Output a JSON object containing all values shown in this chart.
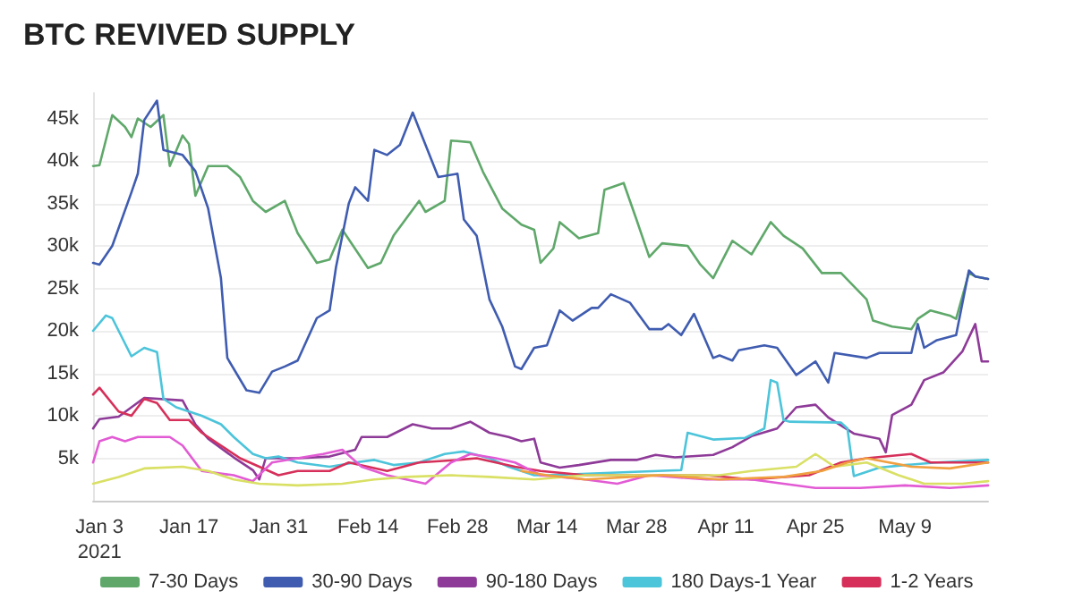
{
  "chart_data": {
    "type": "line",
    "title": "BTC REVIVED SUPPLY",
    "xlim": [
      "2021-01-02",
      "2021-05-22"
    ],
    "xticks": [
      {
        "value": "2021-01-03",
        "label": "Jan 3\n2021"
      },
      {
        "value": "2021-01-17",
        "label": "Jan 17"
      },
      {
        "value": "2021-01-31",
        "label": "Jan 31"
      },
      {
        "value": "2021-02-14",
        "label": "Feb 14"
      },
      {
        "value": "2021-02-28",
        "label": "Feb 28"
      },
      {
        "value": "2021-03-14",
        "label": "Mar 14"
      },
      {
        "value": "2021-03-28",
        "label": "Mar 28"
      },
      {
        "value": "2021-04-11",
        "label": "Apr 11"
      },
      {
        "value": "2021-04-25",
        "label": "Apr 25"
      },
      {
        "value": "2021-05-09",
        "label": "May 9"
      }
    ],
    "ylim": [
      0,
      48000
    ],
    "yticks": [
      {
        "value": 5000,
        "label": "5k"
      },
      {
        "value": 10000,
        "label": "10k"
      },
      {
        "value": 15000,
        "label": "15k"
      },
      {
        "value": 20000,
        "label": "20k"
      },
      {
        "value": 25000,
        "label": "25k"
      },
      {
        "value": 30000,
        "label": "30k"
      },
      {
        "value": 35000,
        "label": "35k"
      },
      {
        "value": 40000,
        "label": "40k"
      },
      {
        "value": 45000,
        "label": "45k"
      }
    ],
    "grid": "y",
    "legend": "bottom",
    "marker": "none",
    "series": [
      {
        "name": "7-30 Days",
        "color": "#5fa86a",
        "x": [
          "2021-01-02",
          "2021-01-03",
          "2021-01-05",
          "2021-01-07",
          "2021-01-08",
          "2021-01-09",
          "2021-01-11",
          "2021-01-13",
          "2021-01-14",
          "2021-01-16",
          "2021-01-17",
          "2021-01-18",
          "2021-01-20",
          "2021-01-23",
          "2021-01-25",
          "2021-01-27",
          "2021-01-29",
          "2021-02-01",
          "2021-02-03",
          "2021-02-06",
          "2021-02-08",
          "2021-02-10",
          "2021-02-14",
          "2021-02-16",
          "2021-02-18",
          "2021-02-22",
          "2021-02-23",
          "2021-02-26",
          "2021-02-27",
          "2021-03-02",
          "2021-03-04",
          "2021-03-07",
          "2021-03-10",
          "2021-03-12",
          "2021-03-13",
          "2021-03-15",
          "2021-03-16",
          "2021-03-19",
          "2021-03-22",
          "2021-03-23",
          "2021-03-26",
          "2021-03-28",
          "2021-03-30",
          "2021-04-01",
          "2021-04-05",
          "2021-04-07",
          "2021-04-09",
          "2021-04-12",
          "2021-04-15",
          "2021-04-18",
          "2021-04-20",
          "2021-04-23",
          "2021-04-26",
          "2021-04-29",
          "2021-05-03",
          "2021-05-04",
          "2021-05-07",
          "2021-05-10",
          "2021-05-11",
          "2021-05-13",
          "2021-05-16",
          "2021-05-17",
          "2021-05-19",
          "2021-05-20",
          "2021-05-22"
        ],
        "values": [
          39400,
          39500,
          45400,
          44000,
          42800,
          45000,
          44000,
          45400,
          39400,
          43000,
          42000,
          35900,
          39400,
          39400,
          38100,
          35300,
          34000,
          35300,
          31500,
          28000,
          28400,
          31900,
          27400,
          28000,
          31200,
          35300,
          34000,
          35300,
          42400,
          42200,
          38700,
          34400,
          32500,
          31900,
          28000,
          29700,
          32800,
          30900,
          31500,
          36600,
          37400,
          33100,
          28700,
          30300,
          30000,
          27800,
          26200,
          30600,
          29000,
          32800,
          31200,
          29700,
          26800,
          26800,
          23700,
          21200,
          20500,
          20200,
          21400,
          22400,
          21800,
          21400,
          26800,
          26400,
          26100
        ]
      },
      {
        "name": "30-90 Days",
        "color": "#3f5cb0",
        "x": [
          "2021-01-02",
          "2021-01-03",
          "2021-01-05",
          "2021-01-08",
          "2021-01-09",
          "2021-01-10",
          "2021-01-12",
          "2021-01-13",
          "2021-01-16",
          "2021-01-18",
          "2021-01-20",
          "2021-01-22",
          "2021-01-23",
          "2021-01-26",
          "2021-01-28",
          "2021-01-30",
          "2021-02-01",
          "2021-02-03",
          "2021-02-06",
          "2021-02-08",
          "2021-02-09",
          "2021-02-11",
          "2021-02-12",
          "2021-02-14",
          "2021-02-15",
          "2021-02-17",
          "2021-02-19",
          "2021-02-21",
          "2021-02-22",
          "2021-02-25",
          "2021-02-28",
          "2021-03-01",
          "2021-03-03",
          "2021-03-05",
          "2021-03-07",
          "2021-03-09",
          "2021-03-10",
          "2021-03-12",
          "2021-03-14",
          "2021-03-16",
          "2021-03-18",
          "2021-03-21",
          "2021-03-22",
          "2021-03-24",
          "2021-03-27",
          "2021-03-30",
          "2021-04-01",
          "2021-04-02",
          "2021-04-04",
          "2021-04-06",
          "2021-04-09",
          "2021-04-10",
          "2021-04-12",
          "2021-04-13",
          "2021-04-17",
          "2021-04-19",
          "2021-04-22",
          "2021-04-25",
          "2021-04-27",
          "2021-04-28",
          "2021-05-03",
          "2021-05-05",
          "2021-05-10",
          "2021-05-11",
          "2021-05-12",
          "2021-05-14",
          "2021-05-17",
          "2021-05-19",
          "2021-05-20",
          "2021-05-22"
        ],
        "values": [
          28000,
          27800,
          30000,
          36300,
          38500,
          44800,
          47100,
          41300,
          40700,
          38800,
          34400,
          26200,
          16800,
          13000,
          12700,
          15200,
          15800,
          16500,
          21500,
          22400,
          27500,
          35000,
          36900,
          35300,
          41300,
          40700,
          41900,
          45700,
          43800,
          38100,
          38500,
          33100,
          31200,
          23700,
          20500,
          15800,
          15500,
          18000,
          18300,
          22400,
          21200,
          22700,
          22700,
          24300,
          23300,
          20200,
          20200,
          20800,
          19500,
          22000,
          16800,
          17100,
          16500,
          17700,
          18300,
          18000,
          14800,
          16400,
          13900,
          17400,
          16800,
          17400,
          17400,
          20800,
          18000,
          18900,
          19500,
          27100,
          26400,
          26100
        ]
      },
      {
        "name": "90-180 Days",
        "color": "#8e3a98",
        "x": [
          "2021-01-02",
          "2021-01-03",
          "2021-01-06",
          "2021-01-10",
          "2021-01-16",
          "2021-01-18",
          "2021-01-20",
          "2021-01-24",
          "2021-01-27",
          "2021-01-28",
          "2021-01-29",
          "2021-02-03",
          "2021-02-08",
          "2021-02-12",
          "2021-02-13",
          "2021-02-17",
          "2021-02-21",
          "2021-02-24",
          "2021-02-27",
          "2021-03-02",
          "2021-03-05",
          "2021-03-08",
          "2021-03-10",
          "2021-03-12",
          "2021-03-13",
          "2021-03-16",
          "2021-03-19",
          "2021-03-24",
          "2021-03-28",
          "2021-03-31",
          "2021-04-03",
          "2021-04-09",
          "2021-04-12",
          "2021-04-15",
          "2021-04-19",
          "2021-04-22",
          "2021-04-25",
          "2021-04-27",
          "2021-05-01",
          "2021-05-05",
          "2021-05-06",
          "2021-05-07",
          "2021-05-10",
          "2021-05-12",
          "2021-05-15",
          "2021-05-18",
          "2021-05-20",
          "2021-05-21",
          "2021-05-22"
        ],
        "values": [
          8500,
          9600,
          9900,
          12100,
          11800,
          9000,
          7300,
          5100,
          3600,
          2500,
          5000,
          5000,
          5200,
          6000,
          7500,
          7500,
          9000,
          8500,
          8500,
          9300,
          8000,
          7500,
          7000,
          7300,
          4500,
          3900,
          4200,
          4800,
          4800,
          5400,
          5100,
          5400,
          6300,
          7600,
          8500,
          11000,
          11300,
          9800,
          7900,
          7300,
          5700,
          10100,
          11300,
          14200,
          15100,
          17600,
          20800,
          16400,
          16400
        ]
      },
      {
        "name": "180 Days-1 Year",
        "color": "#4cc4da",
        "x": [
          "2021-01-02",
          "2021-01-04",
          "2021-01-05",
          "2021-01-08",
          "2021-01-10",
          "2021-01-12",
          "2021-01-13",
          "2021-01-15",
          "2021-01-17",
          "2021-01-19",
          "2021-01-22",
          "2021-01-24",
          "2021-01-27",
          "2021-01-29",
          "2021-01-31",
          "2021-02-03",
          "2021-02-08",
          "2021-02-12",
          "2021-02-15",
          "2021-02-18",
          "2021-02-22",
          "2021-02-26",
          "2021-03-01",
          "2021-03-05",
          "2021-03-08",
          "2021-03-12",
          "2021-03-14",
          "2021-04-04",
          "2021-04-05",
          "2021-04-09",
          "2021-04-14",
          "2021-04-17",
          "2021-04-18",
          "2021-04-19",
          "2021-04-20",
          "2021-04-21",
          "2021-04-29",
          "2021-04-30",
          "2021-05-01",
          "2021-05-05",
          "2021-05-09",
          "2021-05-14",
          "2021-05-22"
        ],
        "values": [
          20000,
          21800,
          21500,
          17000,
          18000,
          17500,
          12000,
          11000,
          10500,
          10000,
          9000,
          7500,
          5500,
          5000,
          5200,
          4500,
          4000,
          4500,
          4800,
          4200,
          4500,
          5500,
          5800,
          5000,
          4000,
          3000,
          3000,
          3600,
          8000,
          7200,
          7400,
          8500,
          14200,
          13900,
          9500,
          9300,
          9200,
          8500,
          2900,
          3900,
          4200,
          4500,
          4800
        ]
      },
      {
        "name": "1-2 Years",
        "color": "#d6305a",
        "x": [
          "2021-01-02",
          "2021-01-03",
          "2021-01-06",
          "2021-01-08",
          "2021-01-10",
          "2021-01-12",
          "2021-01-14",
          "2021-01-17",
          "2021-01-19",
          "2021-01-22",
          "2021-01-25",
          "2021-01-28",
          "2021-01-31",
          "2021-02-03",
          "2021-02-08",
          "2021-02-11",
          "2021-02-17",
          "2021-02-22",
          "2021-02-28",
          "2021-03-03",
          "2021-03-06",
          "2021-03-09",
          "2021-03-13",
          "2021-03-20",
          "2021-03-30",
          "2021-04-08",
          "2021-04-15",
          "2021-04-24",
          "2021-04-29",
          "2021-05-03",
          "2021-05-10",
          "2021-05-13",
          "2021-05-22"
        ],
        "values": [
          12500,
          13300,
          10500,
          10000,
          12000,
          11500,
          9500,
          9500,
          8000,
          6500,
          5000,
          4000,
          3000,
          3500,
          3500,
          4500,
          3500,
          4500,
          4800,
          5000,
          4500,
          4000,
          3500,
          3000,
          3000,
          3000,
          2500,
          3000,
          4500,
          5000,
          5500,
          4500,
          4500
        ]
      },
      {
        "color": "#e25bd4",
        "x": [
          "2021-01-02",
          "2021-01-03",
          "2021-01-05",
          "2021-01-07",
          "2021-01-09",
          "2021-01-14",
          "2021-01-16",
          "2021-01-19",
          "2021-01-24",
          "2021-01-27",
          "2021-01-30",
          "2021-02-03",
          "2021-02-07",
          "2021-02-10",
          "2021-02-13",
          "2021-02-17",
          "2021-02-20",
          "2021-02-23",
          "2021-02-27",
          "2021-03-02",
          "2021-03-06",
          "2021-03-09",
          "2021-03-13",
          "2021-03-20",
          "2021-03-25",
          "2021-03-30",
          "2021-04-08",
          "2021-04-15",
          "2021-04-20",
          "2021-04-25",
          "2021-05-02",
          "2021-05-09",
          "2021-05-16",
          "2021-05-22"
        ],
        "values": [
          4500,
          7000,
          7500,
          7000,
          7500,
          7500,
          6500,
          3500,
          3000,
          2300,
          4500,
          5000,
          5500,
          6000,
          4000,
          3000,
          2500,
          2000,
          4500,
          5500,
          5000,
          4500,
          3000,
          2500,
          2000,
          3000,
          2500,
          2500,
          2000,
          1500,
          1500,
          1800,
          1500,
          1800
        ]
      },
      {
        "color": "#d9e064",
        "x": [
          "2021-01-02",
          "2021-01-06",
          "2021-01-10",
          "2021-01-16",
          "2021-01-20",
          "2021-01-24",
          "2021-01-28",
          "2021-02-03",
          "2021-02-10",
          "2021-02-15",
          "2021-02-20",
          "2021-02-27",
          "2021-03-05",
          "2021-03-12",
          "2021-03-20",
          "2021-03-30",
          "2021-04-10",
          "2021-04-15",
          "2021-04-22",
          "2021-04-25",
          "2021-04-28",
          "2021-05-03",
          "2021-05-08",
          "2021-05-12",
          "2021-05-18",
          "2021-05-22"
        ],
        "values": [
          2000,
          2800,
          3800,
          4000,
          3500,
          2500,
          2000,
          1800,
          2000,
          2500,
          2800,
          3000,
          2800,
          2500,
          3000,
          3000,
          3000,
          3500,
          4000,
          5500,
          4000,
          4500,
          3000,
          2000,
          2000,
          2300
        ]
      },
      {
        "color": "#f0a040",
        "x": [
          "2021-03-10",
          "2021-03-14",
          "2021-03-20",
          "2021-04-01",
          "2021-04-10",
          "2021-04-20",
          "2021-04-26",
          "2021-04-30",
          "2021-05-03",
          "2021-05-10",
          "2021-05-16",
          "2021-05-22"
        ],
        "values": [
          3500,
          3000,
          2500,
          3000,
          2500,
          2800,
          3500,
          4500,
          5000,
          4000,
          3800,
          4500
        ]
      }
    ]
  }
}
